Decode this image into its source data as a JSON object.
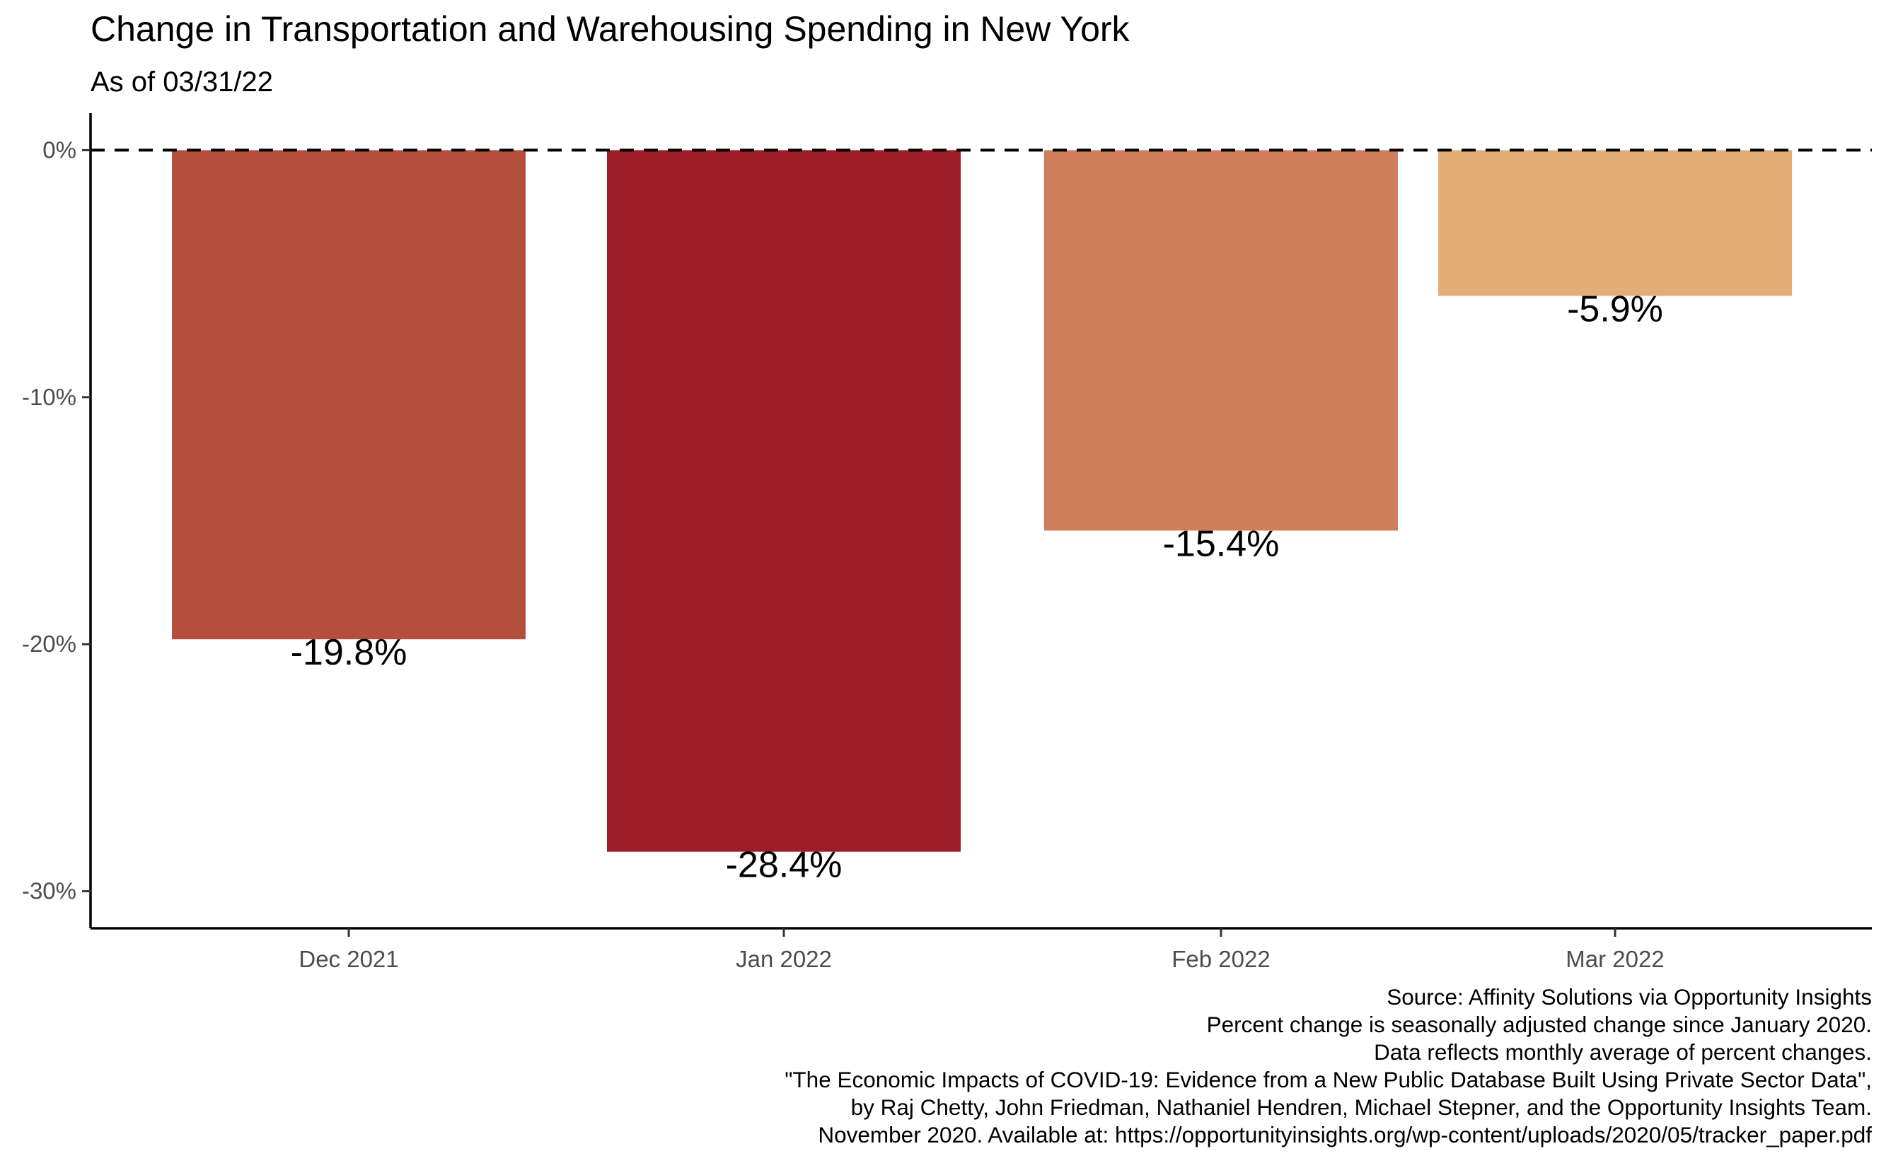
{
  "chart_data": {
    "type": "bar",
    "title": "Change in Transportation and Warehousing Spending in New York",
    "subtitle": "As of 03/31/22",
    "categories": [
      "Dec 2021",
      "Jan 2022",
      "Feb 2022",
      "Mar 2022"
    ],
    "values": [
      -19.8,
      -28.4,
      -15.4,
      -5.9
    ],
    "data_labels": [
      "-19.8%",
      "-28.4%",
      "-15.4%",
      "-5.9%"
    ],
    "colors": [
      "#b54f3d",
      "#9c1c27",
      "#d07d5b",
      "#e4ad78"
    ],
    "ylim": [
      -31.5,
      1.5
    ],
    "yticks": [
      0,
      -10,
      -20,
      -30
    ],
    "ytick_labels": [
      "0%",
      "-10%",
      "-20%",
      "-30%"
    ],
    "reference_line": {
      "y": 0,
      "style": "dashed"
    },
    "xlabel": "",
    "ylabel": "",
    "grid": false,
    "legend": "none"
  },
  "caption": [
    "Source: Affinity Solutions via Opportunity Insights",
    "Percent change is seasonally adjusted change since January 2020.",
    "Data reflects monthly average of percent changes.",
    "\"The Economic Impacts of COVID-19: Evidence from a New Public Database Built Using Private Sector Data\",",
    "by Raj Chetty, John Friedman, Nathaniel Hendren, Michael Stepner, and the Opportunity Insights Team.",
    "November 2020. Available at: https://opportunityinsights.org/wp-content/uploads/2020/05/tracker_paper.pdf"
  ]
}
